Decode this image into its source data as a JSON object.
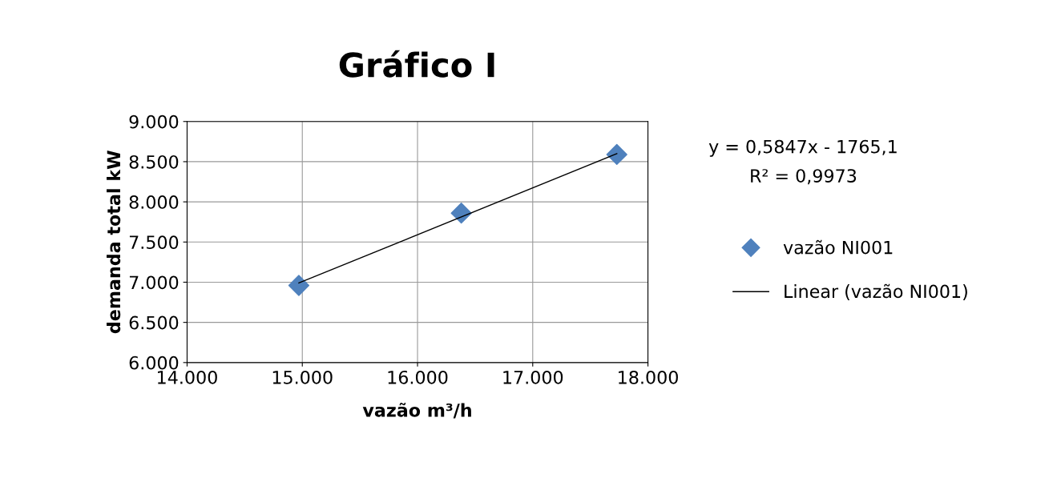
{
  "chart_data": {
    "type": "scatter",
    "title": "Gráfico I",
    "xlabel": "vazão m³/h",
    "ylabel": "demanda total kW",
    "annotations": [
      "y = 0,5847x - 1765,1",
      "R² = 0,9973"
    ],
    "series": [
      {
        "name": "vazão NI001",
        "color": "#4f81bd",
        "marker": "diamond",
        "x": [
          14970,
          16380,
          17730
        ],
        "values": [
          6960,
          7860,
          8590
        ]
      },
      {
        "name": "Linear (vazão NI001)",
        "type": "line",
        "color": "#000000",
        "line_style": "solid",
        "x": [
          14970,
          17730
        ],
        "values": [
          6990,
          8600
        ]
      }
    ],
    "xlim": [
      14000,
      18000
    ],
    "xticks": [
      {
        "value": 14000,
        "label": "14.000"
      },
      {
        "value": 15000,
        "label": "15.000"
      },
      {
        "value": 16000,
        "label": "16.000"
      },
      {
        "value": 17000,
        "label": "17.000"
      },
      {
        "value": 18000,
        "label": "18.000"
      }
    ],
    "ylim": [
      6000,
      9000
    ],
    "yticks": [
      {
        "value": 6000,
        "label": "6.000"
      },
      {
        "value": 6500,
        "label": "6.500"
      },
      {
        "value": 7000,
        "label": "7.000"
      },
      {
        "value": 7500,
        "label": "7.500"
      },
      {
        "value": 8000,
        "label": "8.000"
      },
      {
        "value": 8500,
        "label": "8.500"
      },
      {
        "value": 9000,
        "label": "9.000"
      }
    ],
    "grid": true,
    "legend": "right"
  }
}
